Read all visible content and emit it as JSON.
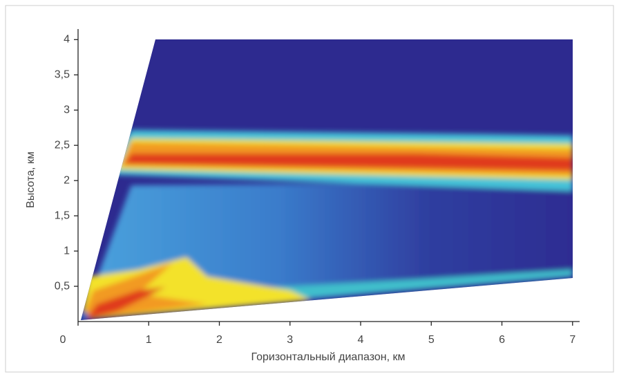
{
  "chart_data": {
    "type": "heatmap",
    "xlabel": "Горизонтальный диапазон, км",
    "ylabel": "Высота, км",
    "xlim": [
      0,
      7.1
    ],
    "ylim": [
      0,
      4.15
    ],
    "xticks": [
      0,
      1,
      2,
      3,
      4,
      5,
      6,
      7
    ],
    "yticks": [
      {
        "value": 0.5,
        "label": "0,5"
      },
      1,
      {
        "value": 1.5,
        "label": "1,5"
      },
      2,
      {
        "value": 2.5,
        "label": "2,5"
      },
      3,
      {
        "value": 3.5,
        "label": "3,5"
      },
      4
    ]
  }
}
